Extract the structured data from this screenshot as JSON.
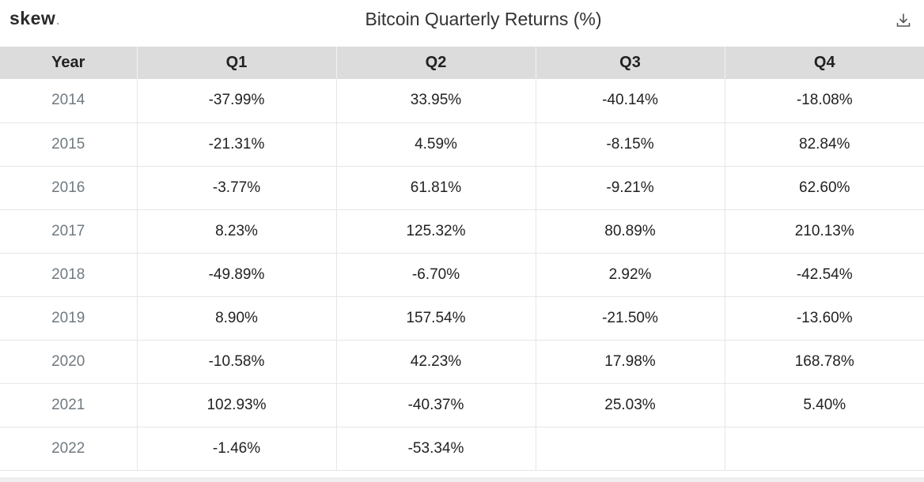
{
  "header": {
    "logo": "skew",
    "logo_dot": ".",
    "title": "Bitcoin Quarterly Returns (%)",
    "download_icon": "download-icon"
  },
  "chart_data": {
    "type": "table",
    "title": "Bitcoin Quarterly Returns (%)",
    "columns": [
      "Year",
      "Q1",
      "Q2",
      "Q3",
      "Q4"
    ],
    "rows": [
      [
        "2014",
        "-37.99%",
        "33.95%",
        "-40.14%",
        "-18.08%"
      ],
      [
        "2015",
        "-21.31%",
        "4.59%",
        "-8.15%",
        "82.84%"
      ],
      [
        "2016",
        "-3.77%",
        "61.81%",
        "-9.21%",
        "62.60%"
      ],
      [
        "2017",
        "8.23%",
        "125.32%",
        "80.89%",
        "210.13%"
      ],
      [
        "2018",
        "-49.89%",
        "-6.70%",
        "2.92%",
        "-42.54%"
      ],
      [
        "2019",
        "8.90%",
        "157.54%",
        "-21.50%",
        "-13.60%"
      ],
      [
        "2020",
        "-10.58%",
        "42.23%",
        "17.98%",
        "168.78%"
      ],
      [
        "2021",
        "102.93%",
        "-40.37%",
        "25.03%",
        "5.40%"
      ],
      [
        "2022",
        "-1.46%",
        "-53.34%",
        "",
        ""
      ]
    ]
  }
}
